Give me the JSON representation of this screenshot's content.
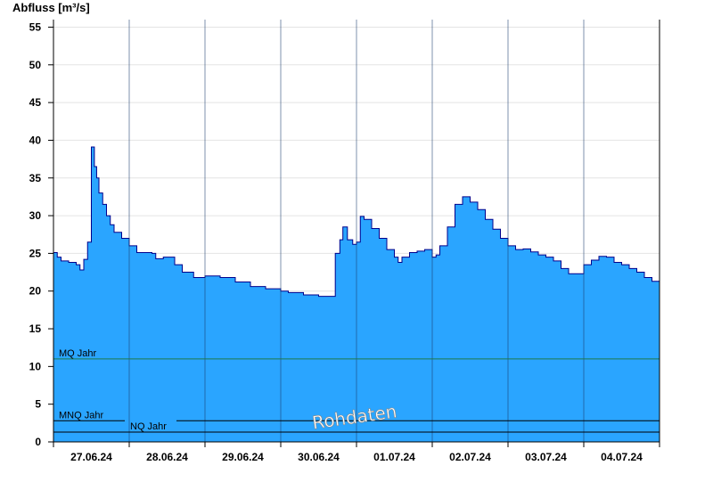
{
  "chart_data": {
    "type": "area",
    "title": "",
    "ylabel": "Abfluss [m³/s]",
    "xlabel": "",
    "ylim": [
      0,
      56
    ],
    "yticks": [
      0,
      5,
      10,
      15,
      20,
      25,
      30,
      35,
      40,
      45,
      50,
      55
    ],
    "xlim": [
      0,
      8
    ],
    "x_ticks": [
      {
        "x": 0.5,
        "label": "27.06.24"
      },
      {
        "x": 1.5,
        "label": "28.06.24"
      },
      {
        "x": 2.5,
        "label": "29.06.24"
      },
      {
        "x": 3.5,
        "label": "30.06.24"
      },
      {
        "x": 4.5,
        "label": "01.07.24"
      },
      {
        "x": 5.5,
        "label": "02.07.24"
      },
      {
        "x": 6.5,
        "label": "03.07.24"
      },
      {
        "x": 7.5,
        "label": "04.07.24"
      }
    ],
    "day_separators": [
      1,
      2,
      3,
      4,
      5,
      6,
      7
    ],
    "grid": true,
    "fill_color": "#2aa5ff",
    "line_color": "#00008b",
    "series": [
      {
        "x": [
          0,
          0.05,
          0.1,
          0.2,
          0.3,
          0.35,
          0.4,
          0.45,
          0.5,
          0.54,
          0.57,
          0.6,
          0.65,
          0.7,
          0.75,
          0.8,
          0.9,
          1.0,
          1.1,
          1.2,
          1.3,
          1.35,
          1.45,
          1.6,
          1.7,
          1.85,
          2.0,
          2.2,
          2.4,
          2.6,
          2.8,
          3.0,
          3.1,
          3.3,
          3.5,
          3.65,
          3.72,
          3.78,
          3.82,
          3.88,
          3.95,
          4.0,
          4.05,
          4.1,
          4.2,
          4.3,
          4.4,
          4.5,
          4.55,
          4.6,
          4.7,
          4.8,
          4.9,
          5.0,
          5.05,
          5.1,
          5.2,
          5.3,
          5.4,
          5.5,
          5.6,
          5.7,
          5.8,
          5.9,
          6.0,
          6.1,
          6.2,
          6.3,
          6.4,
          6.5,
          6.6,
          6.7,
          6.8,
          6.9,
          7.0,
          7.1,
          7.2,
          7.3,
          7.4,
          7.5,
          7.6,
          7.7,
          7.8,
          7.9,
          8.0
        ],
        "values": [
          25.1,
          24.5,
          24.0,
          23.8,
          23.5,
          22.8,
          24.2,
          26.5,
          39.1,
          36.5,
          35.0,
          33.0,
          31.5,
          30.0,
          28.8,
          27.8,
          27.0,
          26.0,
          25.1,
          25.1,
          25.0,
          24.3,
          24.5,
          23.5,
          22.5,
          21.8,
          22.0,
          21.8,
          21.2,
          20.6,
          20.3,
          20.0,
          19.8,
          19.5,
          19.3,
          19.3,
          25.0,
          26.8,
          28.5,
          26.8,
          26.2,
          26.5,
          29.9,
          29.5,
          28.3,
          27.0,
          25.5,
          24.5,
          23.8,
          24.5,
          25.1,
          25.3,
          25.5,
          24.5,
          24.8,
          26.0,
          28.5,
          31.5,
          32.5,
          31.8,
          30.8,
          29.5,
          28.2,
          27.0,
          26.0,
          25.5,
          25.6,
          25.2,
          24.8,
          24.5,
          24.0,
          23.0,
          22.3,
          22.3,
          23.5,
          24.1,
          24.6,
          24.5,
          23.8,
          23.5,
          23.0,
          22.5,
          21.8,
          21.3,
          21.0
        ]
      }
    ],
    "reference_lines": [
      {
        "name": "MQ Jahr",
        "value": 11.0,
        "color": "#1f7a4a"
      },
      {
        "name": "MNQ Jahr",
        "value": 2.8,
        "color": "#000000"
      },
      {
        "name": "NQ Jahr",
        "value": 1.3,
        "color": "#000000"
      }
    ],
    "watermark": "Rohdaten"
  }
}
